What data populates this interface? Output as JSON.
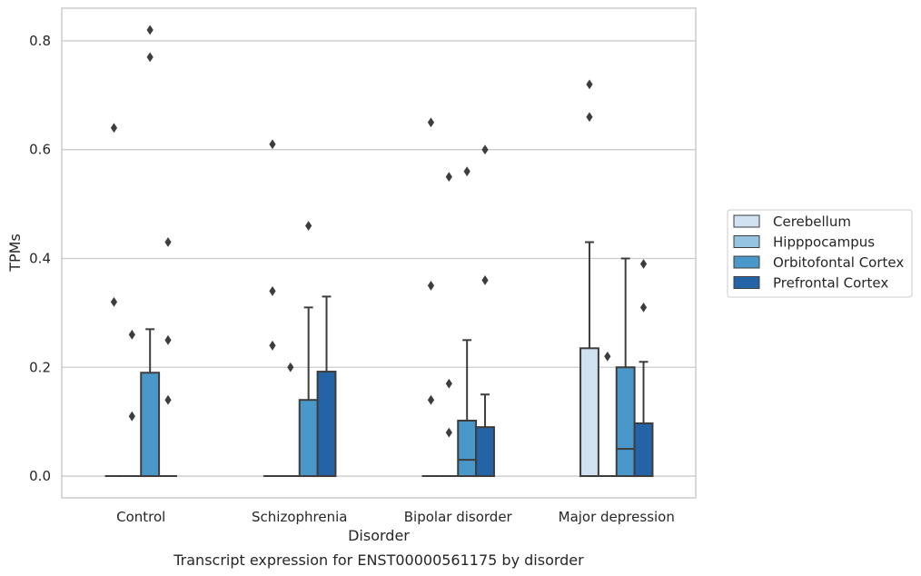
{
  "chart_data": {
    "type": "box",
    "xlabel": "Disorder",
    "ylabel": "TPMs",
    "caption": "Transcript expression for ENST00000561175 by disorder",
    "ylim": [
      -0.04,
      0.86
    ],
    "yticks": [
      0.0,
      0.2,
      0.4,
      0.6,
      0.8
    ],
    "ytick_labels": [
      "0.0",
      "0.2",
      "0.4",
      "0.6",
      "0.8"
    ],
    "grid": "horizontal",
    "legend_position": "right",
    "categories": [
      "Control",
      "Schizophrenia",
      "Bipolar disorder",
      "Major depression"
    ],
    "series": [
      {
        "name": "Cerebellum",
        "color": "#d0e1f2",
        "boxes": [
          {
            "q1": 0,
            "median": 0,
            "q3": 0,
            "whisker_low": 0,
            "whisker_high": 0,
            "outliers": [
              0.64,
              0.32
            ]
          },
          {
            "q1": 0,
            "median": 0,
            "q3": 0,
            "whisker_low": 0,
            "whisker_high": 0,
            "outliers": [
              0.61,
              0.34,
              0.24
            ]
          },
          {
            "q1": 0,
            "median": 0,
            "q3": 0,
            "whisker_low": 0,
            "whisker_high": 0,
            "outliers": [
              0.65,
              0.35,
              0.14
            ]
          },
          {
            "q1": 0,
            "median": 0,
            "q3": 0.235,
            "whisker_low": 0,
            "whisker_high": 0.43,
            "outliers": [
              0.72,
              0.66
            ]
          }
        ]
      },
      {
        "name": "Hipppocampus",
        "color": "#94c4df",
        "boxes": [
          {
            "q1": 0,
            "median": 0,
            "q3": 0,
            "whisker_low": 0,
            "whisker_high": 0,
            "outliers": [
              0.26,
              0.11
            ]
          },
          {
            "q1": 0,
            "median": 0,
            "q3": 0,
            "whisker_low": 0,
            "whisker_high": 0,
            "outliers": [
              0.2
            ]
          },
          {
            "q1": 0,
            "median": 0,
            "q3": 0,
            "whisker_low": 0,
            "whisker_high": 0,
            "outliers": [
              0.55,
              0.17,
              0.08
            ]
          },
          {
            "q1": 0,
            "median": 0,
            "q3": 0,
            "whisker_low": 0,
            "whisker_high": 0,
            "outliers": [
              0.22
            ]
          }
        ]
      },
      {
        "name": "Orbitofontal Cortex",
        "color": "#4a98c9",
        "boxes": [
          {
            "q1": 0,
            "median": 0,
            "q3": 0.19,
            "whisker_low": 0,
            "whisker_high": 0.27,
            "outliers": [
              0.82,
              0.77
            ]
          },
          {
            "q1": 0,
            "median": 0,
            "q3": 0.14,
            "whisker_low": 0,
            "whisker_high": 0.31,
            "outliers": [
              0.46
            ]
          },
          {
            "q1": 0,
            "median": 0.03,
            "q3": 0.102,
            "whisker_low": 0,
            "whisker_high": 0.25,
            "outliers": [
              0.56
            ]
          },
          {
            "q1": 0,
            "median": 0.05,
            "q3": 0.2,
            "whisker_low": 0,
            "whisker_high": 0.4,
            "outliers": []
          }
        ]
      },
      {
        "name": "Prefrontal Cortex",
        "color": "#2464a6",
        "boxes": [
          {
            "q1": 0,
            "median": 0,
            "q3": 0,
            "whisker_low": 0,
            "whisker_high": 0,
            "outliers": [
              0.43,
              0.25,
              0.14
            ]
          },
          {
            "q1": 0,
            "median": 0,
            "q3": 0.192,
            "whisker_low": 0,
            "whisker_high": 0.33,
            "outliers": []
          },
          {
            "q1": 0,
            "median": 0,
            "q3": 0.09,
            "whisker_low": 0,
            "whisker_high": 0.15,
            "outliers": [
              0.6,
              0.36
            ]
          },
          {
            "q1": 0,
            "median": 0,
            "q3": 0.097,
            "whisker_low": 0,
            "whisker_high": 0.21,
            "outliers": [
              0.39,
              0.31
            ]
          }
        ]
      }
    ]
  }
}
